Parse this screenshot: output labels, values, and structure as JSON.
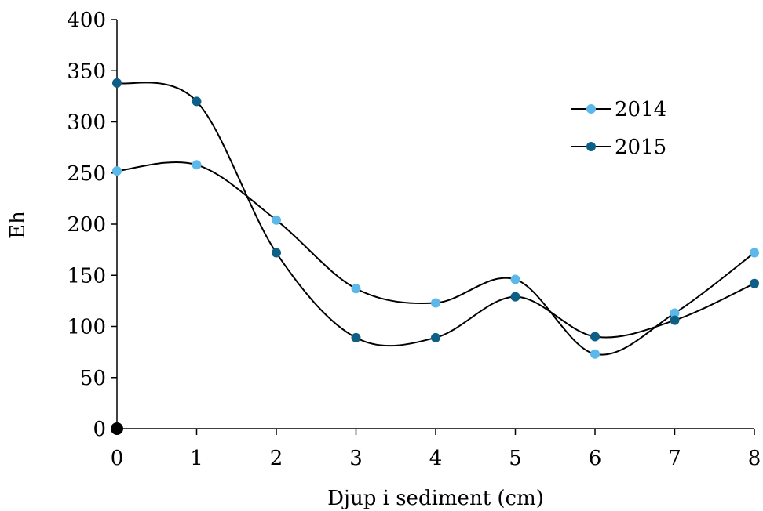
{
  "chart_data": {
    "type": "line",
    "title": "",
    "xlabel": "Djup i sediment (cm)",
    "ylabel": "Eh",
    "x": [
      0,
      1,
      2,
      3,
      4,
      5,
      6,
      7,
      8
    ],
    "xlim": [
      0,
      8
    ],
    "ylim": [
      0,
      400
    ],
    "x_ticks": [
      "0",
      "1",
      "2",
      "3",
      "4",
      "5",
      "6",
      "7",
      "8"
    ],
    "y_ticks": [
      "0",
      "50",
      "100",
      "150",
      "200",
      "250",
      "300",
      "350",
      "400"
    ],
    "smoothed": true,
    "grid": false,
    "legend_position": "top-right",
    "series": [
      {
        "name": "2014",
        "color": "#5bb8e8",
        "values": [
          252,
          258,
          204,
          137,
          123,
          146,
          73,
          113,
          172
        ]
      },
      {
        "name": "2015",
        "color": "#0d5f86",
        "values": [
          338,
          320,
          172,
          89,
          89,
          129,
          90,
          106,
          142
        ]
      }
    ]
  }
}
